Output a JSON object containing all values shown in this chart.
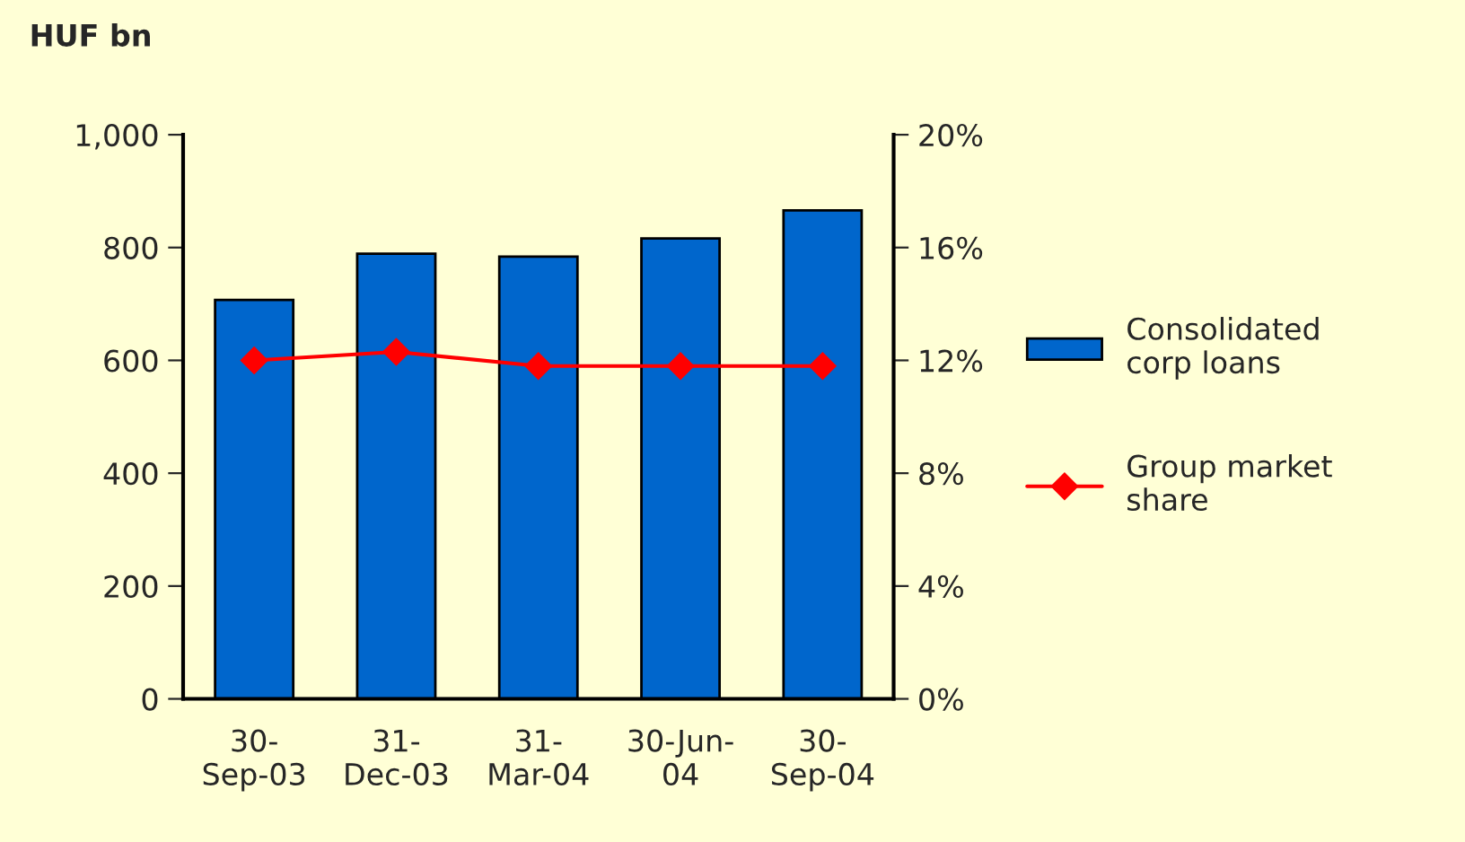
{
  "chart_data": {
    "type": "bar",
    "ylabel": "HUF bn",
    "categories": [
      "30-\nSep-03",
      "31-\nDec-03",
      "31-\nMar-04",
      "30-Jun-\n04",
      "30-\nSep-04"
    ],
    "series": [
      {
        "name": "Consolidated\ncorp loans",
        "color": "#0066cc",
        "values": [
          707,
          789,
          784,
          816,
          866
        ]
      },
      {
        "name": "Group market\nshare",
        "type": "line",
        "axis": "y2",
        "color": "#ff0000",
        "marker": "diamond",
        "values": [
          12.0,
          12.3,
          11.8,
          11.8,
          11.8
        ]
      }
    ],
    "ylim": [
      0,
      1000
    ],
    "yticks": [
      0,
      200,
      400,
      600,
      800,
      {
        "value": 1000,
        "label": "1,000"
      }
    ],
    "y2lim": [
      0,
      20
    ],
    "y2ticks": [
      {
        "value": 0,
        "label": "0%"
      },
      {
        "value": 4,
        "label": "4%"
      },
      {
        "value": 8,
        "label": "8%"
      },
      {
        "value": 12,
        "label": "12%"
      },
      {
        "value": 16,
        "label": "16%"
      },
      {
        "value": 20,
        "label": "20%"
      }
    ],
    "grid": false,
    "legend": "right"
  }
}
